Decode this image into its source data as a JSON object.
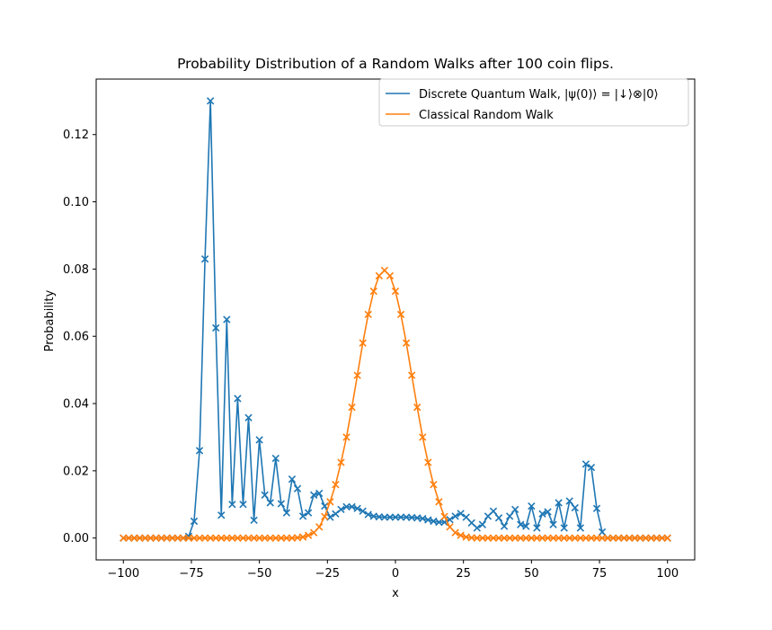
{
  "chart_data": {
    "type": "line",
    "title": "Probability Distribution of a Random Walks after 100 coin flips.",
    "xlabel": "x",
    "ylabel": "Probability",
    "xlim": [
      -110,
      110
    ],
    "ylim": [
      -0.0065,
      0.1365
    ],
    "xticks": [
      -100,
      -75,
      -50,
      -25,
      0,
      25,
      50,
      75,
      100
    ],
    "xtick_labels": [
      "−100",
      "−75",
      "−50",
      "−25",
      "0",
      "25",
      "50",
      "75",
      "100"
    ],
    "yticks": [
      0.0,
      0.02,
      0.04,
      0.06,
      0.08,
      0.1,
      0.12
    ],
    "ytick_labels": [
      "0.00",
      "0.02",
      "0.04",
      "0.06",
      "0.08",
      "0.10",
      "0.12"
    ],
    "grid": false,
    "legend_position": "upper right",
    "marker": "x",
    "x": [
      -100,
      -98,
      -96,
      -94,
      -92,
      -90,
      -88,
      -86,
      -84,
      -82,
      -80,
      -78,
      -76,
      -74,
      -72,
      -70,
      -68,
      -66,
      -64,
      -62,
      -60,
      -58,
      -56,
      -54,
      -52,
      -50,
      -48,
      -46,
      -44,
      -42,
      -40,
      -38,
      -36,
      -34,
      -32,
      -30,
      -28,
      -26,
      -24,
      -22,
      -20,
      -18,
      -16,
      -14,
      -12,
      -10,
      -8,
      -6,
      -4,
      -2,
      0,
      2,
      4,
      6,
      8,
      10,
      12,
      14,
      16,
      18,
      20,
      22,
      24,
      26,
      28,
      30,
      32,
      34,
      36,
      38,
      40,
      42,
      44,
      46,
      48,
      50,
      52,
      54,
      56,
      58,
      60,
      62,
      64,
      66,
      68,
      70,
      72,
      74,
      76,
      78,
      80,
      82,
      84,
      86,
      88,
      90,
      92,
      94,
      96,
      98,
      100
    ],
    "series": [
      {
        "name": "Discrete Quantum Walk, |ψ(0)⟩ = |↓⟩⊗|0⟩",
        "color": "#1f77b4",
        "values": [
          0,
          0,
          0,
          0,
          0,
          0,
          0,
          0,
          0,
          0,
          0,
          0,
          0.0005,
          0.005,
          0.026,
          0.083,
          0.13,
          0.0625,
          0.0068,
          0.065,
          0.01,
          0.0415,
          0.01,
          0.0358,
          0.0053,
          0.0292,
          0.0128,
          0.0105,
          0.0237,
          0.0102,
          0.0075,
          0.0175,
          0.0147,
          0.0065,
          0.0075,
          0.0128,
          0.0133,
          0.0095,
          0.0062,
          0.0072,
          0.0085,
          0.0093,
          0.0093,
          0.0088,
          0.008,
          0.007,
          0.0065,
          0.0063,
          0.0062,
          0.0062,
          0.0062,
          0.0062,
          0.0062,
          0.0061,
          0.006,
          0.0058,
          0.0054,
          0.005,
          0.0047,
          0.0047,
          0.0055,
          0.0065,
          0.0073,
          0.0062,
          0.0045,
          0.003,
          0.004,
          0.0065,
          0.008,
          0.006,
          0.0035,
          0.0065,
          0.0085,
          0.004,
          0.0035,
          0.0095,
          0.003,
          0.0072,
          0.0078,
          0.004,
          0.0105,
          0.003,
          0.011,
          0.009,
          0.003,
          0.022,
          0.021,
          0.0088,
          0.0018,
          0,
          0,
          0,
          0,
          0,
          0,
          0,
          0,
          0,
          0,
          0,
          0
        ]
      },
      {
        "name": "Classical Random Walk",
        "color": "#ff7f0e",
        "values": [
          0,
          0,
          0,
          0,
          0,
          0,
          0,
          0,
          0,
          0,
          0,
          0,
          0,
          0,
          0,
          0,
          0,
          0,
          0,
          0,
          0,
          0,
          0,
          0,
          0,
          0,
          0,
          0,
          0,
          0,
          0,
          0,
          0.0001,
          0.0003,
          0.0008,
          0.0016,
          0.0033,
          0.0064,
          0.0108,
          0.0159,
          0.0225,
          0.03,
          0.0389,
          0.0484,
          0.058,
          0.0665,
          0.0734,
          0.078,
          0.0796,
          0.078,
          0.0734,
          0.0665,
          0.058,
          0.0484,
          0.0389,
          0.03,
          0.0225,
          0.0159,
          0.0108,
          0.0064,
          0.0033,
          0.0016,
          0.0008,
          0.0003,
          0.0001,
          0,
          0,
          0,
          0,
          0,
          0,
          0,
          0,
          0,
          0,
          0,
          0,
          0,
          0,
          0,
          0,
          0,
          0,
          0,
          0,
          0,
          0,
          0,
          0,
          0,
          0,
          0,
          0,
          0,
          0,
          0,
          0,
          0,
          0,
          0,
          0
        ]
      }
    ]
  }
}
